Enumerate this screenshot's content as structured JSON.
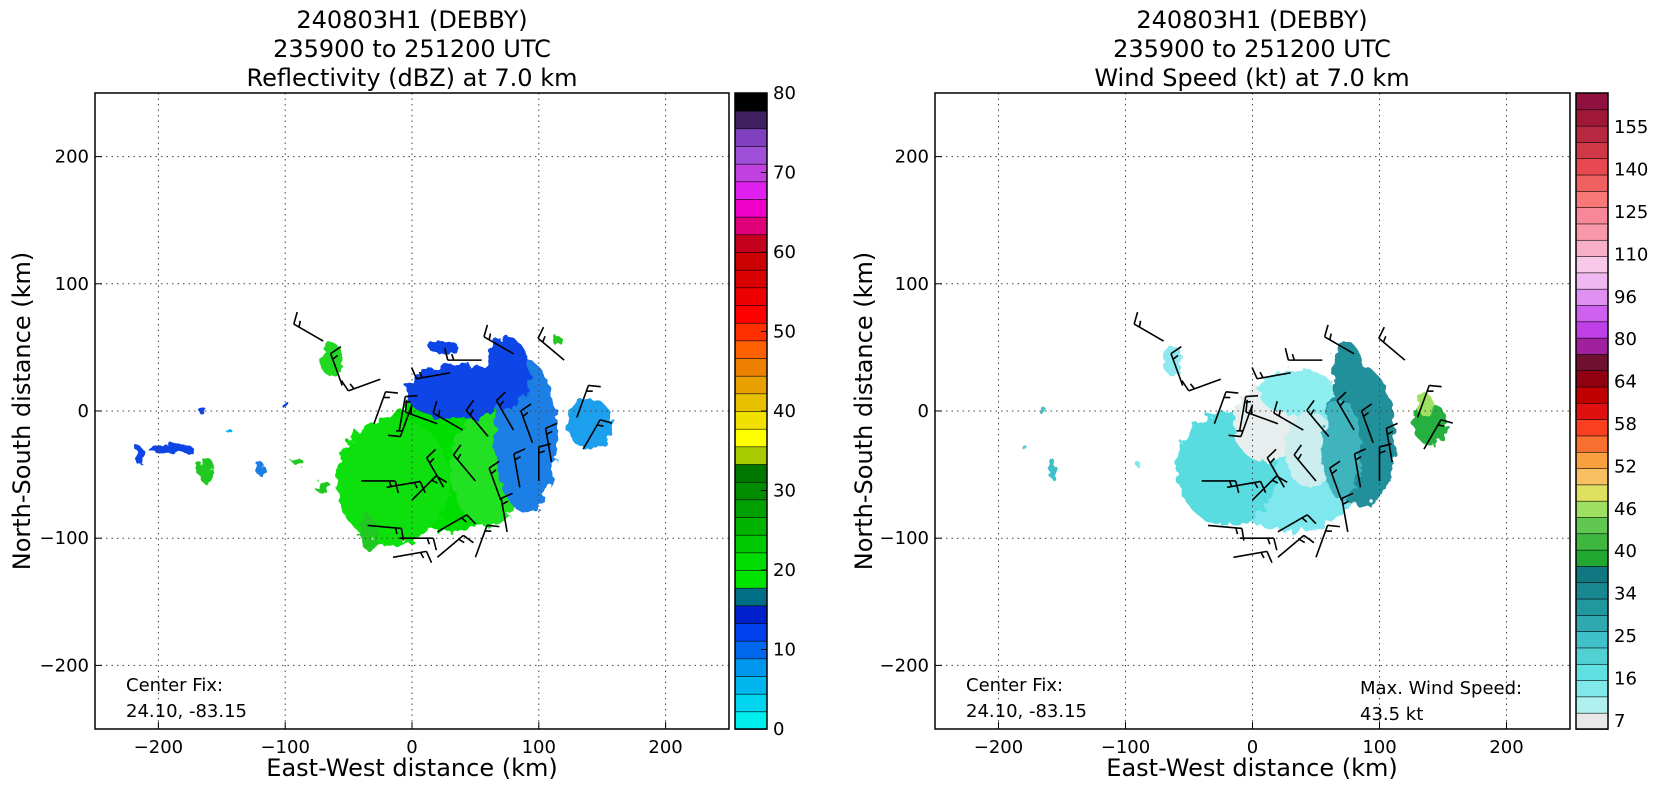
{
  "figure_background": "#ffffff",
  "chart_data": [
    {
      "type": "heatmap",
      "title": [
        "240803H1 (DEBBY)",
        "235900 to 251200 UTC",
        "Reflectivity (dBZ) at 7.0 km"
      ],
      "xlabel": "East-West distance (km)",
      "ylabel": "North-South distance (km)",
      "xlim": [
        -250,
        250
      ],
      "ylim": [
        -250,
        250
      ],
      "xticks": [
        -200,
        -100,
        0,
        100,
        200
      ],
      "yticks": [
        -200,
        -100,
        0,
        100,
        200
      ],
      "xtick_labels": [
        "−200",
        "−100",
        "0",
        "100",
        "200"
      ],
      "ytick_labels": [
        "−200",
        "−100",
        "0",
        "100",
        "200"
      ],
      "grid": true,
      "annotation": [
        "Center Fix:",
        "24.10, -83.15"
      ],
      "colorbar": {
        "min": 0,
        "max": 80,
        "step": 2.5,
        "ticks": [
          0,
          10,
          20,
          30,
          40,
          50,
          60,
          70,
          80
        ],
        "tick_labels": [
          "0",
          "10",
          "20",
          "30",
          "40",
          "50",
          "60",
          "70",
          "80"
        ],
        "colors": [
          "#00eeee",
          "#00d4ee",
          "#00b6ee",
          "#0098ee",
          "#0068ee",
          "#0040ee",
          "#0020cc",
          "#006e85",
          "#00e400",
          "#00dc00",
          "#00c800",
          "#00b400",
          "#00a000",
          "#008c00",
          "#007800",
          "#a8cc00",
          "#ffff00",
          "#f2e000",
          "#e8c000",
          "#e8a000",
          "#ee8000",
          "#ff6000",
          "#ff3000",
          "#ff0000",
          "#ee0000",
          "#d80000",
          "#cc0000",
          "#c4001e",
          "#e0007a",
          "#ee00c8",
          "#e020ee",
          "#c040e0",
          "#a050d8",
          "#8040c0",
          "#402060",
          "#000000"
        ]
      },
      "blobs": [
        {
          "x": 30,
          "y": -40,
          "rx": 60,
          "ry": 55,
          "color": "#00dd00"
        },
        {
          "x": -15,
          "y": -55,
          "rx": 45,
          "ry": 50,
          "color": "#10e010"
        },
        {
          "x": 60,
          "y": -45,
          "rx": 30,
          "ry": 45,
          "color": "#20e020"
        },
        {
          "x": 35,
          "y": 15,
          "rx": 40,
          "ry": 22,
          "color": "#0a44e6"
        },
        {
          "x": 90,
          "y": -20,
          "rx": 25,
          "ry": 60,
          "color": "#1a7fe6"
        },
        {
          "x": 75,
          "y": 30,
          "rx": 18,
          "ry": 28,
          "color": "#0a44e6"
        },
        {
          "x": 140,
          "y": -10,
          "rx": 18,
          "ry": 20,
          "color": "#1ea0ee"
        },
        {
          "x": -63,
          "y": 40,
          "rx": 9,
          "ry": 13,
          "color": "#20d820"
        },
        {
          "x": -162,
          "y": -47,
          "rx": 7,
          "ry": 10,
          "color": "#20c820"
        },
        {
          "x": -190,
          "y": -30,
          "rx": 18,
          "ry": 4,
          "color": "#0a44e6"
        },
        {
          "x": -215,
          "y": -35,
          "rx": 4,
          "ry": 7,
          "color": "#0a44e6"
        },
        {
          "x": -120,
          "y": -45,
          "rx": 4,
          "ry": 5,
          "color": "#1a7fe6"
        },
        {
          "x": -90,
          "y": -40,
          "rx": 4,
          "ry": 3,
          "color": "#20c820"
        },
        {
          "x": -35,
          "y": -95,
          "rx": 7,
          "ry": 14,
          "color": "#20c820"
        },
        {
          "x": -70,
          "y": -60,
          "rx": 7,
          "ry": 4,
          "color": "#20c820"
        },
        {
          "x": -100,
          "y": 5,
          "rx": 3,
          "ry": 3,
          "color": "#0a44e6"
        },
        {
          "x": -165,
          "y": 0,
          "rx": 3,
          "ry": 3,
          "color": "#0a44e6"
        },
        {
          "x": -145,
          "y": -15,
          "rx": 2,
          "ry": 2,
          "color": "#00b6ee"
        },
        {
          "x": 115,
          "y": 55,
          "rx": 4,
          "ry": 4,
          "color": "#20c820"
        },
        {
          "x": 25,
          "y": 50,
          "rx": 12,
          "ry": 5,
          "color": "#0a44e6"
        }
      ]
    },
    {
      "type": "heatmap",
      "title": [
        "240803H1 (DEBBY)",
        "235900 to 251200 UTC",
        "Wind Speed (kt) at 7.0 km"
      ],
      "xlabel": "East-West distance (km)",
      "ylabel": "North-South distance (km)",
      "xlim": [
        -250,
        250
      ],
      "ylim": [
        -250,
        250
      ],
      "xticks": [
        -200,
        -100,
        0,
        100,
        200
      ],
      "yticks": [
        -200,
        -100,
        0,
        100,
        200
      ],
      "xtick_labels": [
        "−200",
        "−100",
        "0",
        "100",
        "200"
      ],
      "ytick_labels": [
        "−200",
        "−100",
        "0",
        "100",
        "200"
      ],
      "grid": true,
      "annotation": [
        "Center Fix:",
        "24.10, -83.15"
      ],
      "max_wind_annotation": [
        "Max. Wind Speed:",
        "43.5 kt"
      ],
      "colorbar": {
        "min": 0,
        "max": 163,
        "ticks_text": [
          "7",
          "16",
          "25",
          "34",
          "40",
          "46",
          "52",
          "58",
          "64",
          "80",
          "96",
          "110",
          "125",
          "140",
          "155"
        ],
        "colors": [
          "#e8e8e8",
          "#b0f0f0",
          "#80e8e8",
          "#60e0e0",
          "#50d0d0",
          "#40c0c8",
          "#30a8b0",
          "#20989e",
          "#188890",
          "#107880",
          "#20a830",
          "#40b840",
          "#60c850",
          "#a0e060",
          "#e0e060",
          "#f8c060",
          "#f8a040",
          "#f87030",
          "#f84020",
          "#e01010",
          "#c00000",
          "#900010",
          "#701030",
          "#a020a0",
          "#c040e8",
          "#d060f0",
          "#e090f0",
          "#f0b8f0",
          "#f8c8e8",
          "#f8b0c8",
          "#f898a8",
          "#f88898",
          "#f87878",
          "#f06060",
          "#e84850",
          "#d03848",
          "#b82840",
          "#a01838",
          "#901040"
        ]
      },
      "blobs": [
        {
          "x": 30,
          "y": -40,
          "rx": 60,
          "ry": 55,
          "color": "#7ee8ee"
        },
        {
          "x": -20,
          "y": -45,
          "rx": 40,
          "ry": 45,
          "color": "#58dce0"
        },
        {
          "x": 10,
          "y": -10,
          "rx": 25,
          "ry": 30,
          "color": "#e8eeee"
        },
        {
          "x": 45,
          "y": -30,
          "rx": 20,
          "ry": 30,
          "color": "#cceeee"
        },
        {
          "x": 35,
          "y": 15,
          "rx": 30,
          "ry": 18,
          "color": "#8eeef0"
        },
        {
          "x": 85,
          "y": -20,
          "rx": 28,
          "ry": 55,
          "color": "#20909a"
        },
        {
          "x": 70,
          "y": -30,
          "rx": 15,
          "ry": 40,
          "color": "#40b4bc"
        },
        {
          "x": 75,
          "y": 30,
          "rx": 12,
          "ry": 24,
          "color": "#20909a"
        },
        {
          "x": 140,
          "y": -10,
          "rx": 14,
          "ry": 16,
          "color": "#28b040"
        },
        {
          "x": 136,
          "y": 5,
          "rx": 6,
          "ry": 9,
          "color": "#a0e060"
        },
        {
          "x": -63,
          "y": 40,
          "rx": 8,
          "ry": 12,
          "color": "#8ee8ee"
        },
        {
          "x": -158,
          "y": -45,
          "rx": 3,
          "ry": 8,
          "color": "#40c0c8"
        },
        {
          "x": -165,
          "y": 0,
          "rx": 3,
          "ry": 3,
          "color": "#40c0c8"
        },
        {
          "x": -180,
          "y": -28,
          "rx": 2,
          "ry": 2,
          "color": "#50d0d0"
        },
        {
          "x": -90,
          "y": -42,
          "rx": 2,
          "ry": 2,
          "color": "#80e8e8"
        }
      ]
    }
  ],
  "barbs": [
    {
      "x": -55,
      "y": 20,
      "dir": 340
    },
    {
      "x": -70,
      "y": 55,
      "dir": 300
    },
    {
      "x": -30,
      "y": -10,
      "dir": 20
    },
    {
      "x": -10,
      "y": -15,
      "dir": 10
    },
    {
      "x": 0,
      "y": 5,
      "dir": 200
    },
    {
      "x": 20,
      "y": -10,
      "dir": 290
    },
    {
      "x": 40,
      "y": -15,
      "dir": 300
    },
    {
      "x": 60,
      "y": -20,
      "dir": 320
    },
    {
      "x": 80,
      "y": -15,
      "dir": 330
    },
    {
      "x": 95,
      "y": -25,
      "dir": 340
    },
    {
      "x": 110,
      "y": -40,
      "dir": 350
    },
    {
      "x": -40,
      "y": -55,
      "dir": 90
    },
    {
      "x": -20,
      "y": -60,
      "dir": 80
    },
    {
      "x": 0,
      "y": -70,
      "dir": 45
    },
    {
      "x": 25,
      "y": -60,
      "dir": 330
    },
    {
      "x": 50,
      "y": -55,
      "dir": 320
    },
    {
      "x": 70,
      "y": -70,
      "dir": 340
    },
    {
      "x": 85,
      "y": -60,
      "dir": 350
    },
    {
      "x": 100,
      "y": -55,
      "dir": 0
    },
    {
      "x": -35,
      "y": -90,
      "dir": 95
    },
    {
      "x": -10,
      "y": -100,
      "dir": 90
    },
    {
      "x": 20,
      "y": -95,
      "dir": 60
    },
    {
      "x": 50,
      "y": -115,
      "dir": 20
    },
    {
      "x": 75,
      "y": -95,
      "dir": 350
    },
    {
      "x": -15,
      "y": -115,
      "dir": 80
    },
    {
      "x": 20,
      "y": -115,
      "dir": 50
    },
    {
      "x": 120,
      "y": 40,
      "dir": 310
    },
    {
      "x": 130,
      "y": -5,
      "dir": 20
    },
    {
      "x": 135,
      "y": -30,
      "dir": 30
    },
    {
      "x": 55,
      "y": 40,
      "dir": 270
    },
    {
      "x": 80,
      "y": 45,
      "dir": 300
    },
    {
      "x": 30,
      "y": 30,
      "dir": 260
    },
    {
      "x": -25,
      "y": 25,
      "dir": 250
    }
  ]
}
